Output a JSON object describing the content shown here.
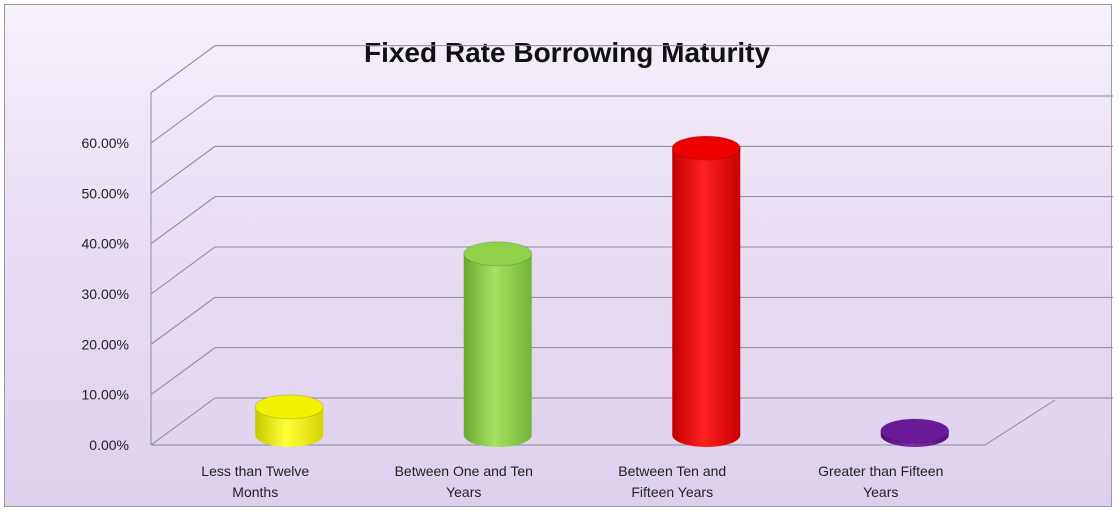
{
  "chart_data": {
    "type": "bar",
    "title": "Fixed Rate Borrowing Maturity",
    "categories": [
      [
        "Less than Twelve",
        "Months"
      ],
      [
        "Between One and Ten",
        "Years"
      ],
      [
        "Between Ten and",
        "Fifteen Years"
      ],
      [
        "Greater than Fifteen",
        "Years"
      ]
    ],
    "values": [
      0.056,
      0.36,
      0.57,
      0.008
    ],
    "colors": [
      "#f2f200",
      "#8fd24a",
      "#ee0000",
      "#6a1a96"
    ],
    "ylim": [
      0,
      0.6
    ],
    "yticks": [
      "0.00%",
      "10.00%",
      "20.00%",
      "30.00%",
      "40.00%",
      "50.00%",
      "60.00%"
    ],
    "grid": true,
    "legend": "none",
    "style": "3d-cylinder"
  }
}
